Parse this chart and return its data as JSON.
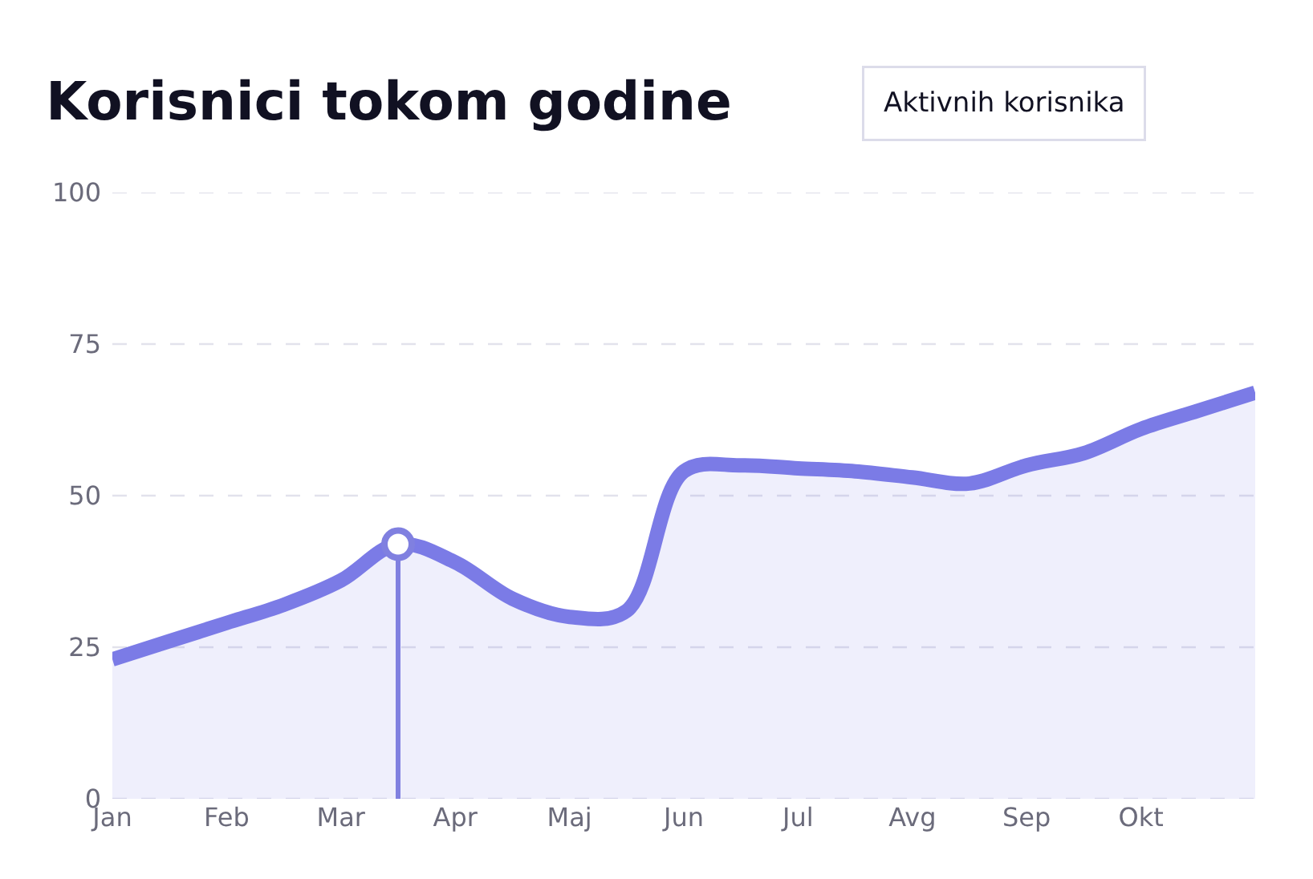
{
  "chart_data": {
    "type": "area",
    "title": "Korisnici tokom godine",
    "annotations": [
      "Aktivnih korisnika"
    ],
    "categories": [
      "Jan",
      null,
      "Feb",
      null,
      "Mar",
      null,
      "Apr",
      null,
      "Maj",
      null,
      "Jun",
      null,
      "Jul",
      null,
      "Avg",
      null,
      "Sep",
      null,
      "Okt",
      null,
      null
    ],
    "series": [
      {
        "color": "#7b7be6",
        "values": [
          23,
          26,
          29,
          32,
          36,
          42,
          39,
          33,
          30,
          31,
          54,
          55,
          54.5,
          54,
          53,
          52,
          55,
          57,
          61,
          64,
          67
        ]
      },
      {
        "type": "lollipop",
        "color": "#8080e0",
        "values": [
          null,
          null,
          null,
          null,
          null,
          42,
          null,
          null,
          null,
          null,
          null,
          null,
          null,
          null,
          null,
          null,
          null,
          null,
          null,
          null,
          null
        ]
      }
    ],
    "ylim": [
      0,
      100
    ],
    "yticks": [
      0,
      25,
      50,
      75,
      100
    ],
    "grid": "y"
  }
}
